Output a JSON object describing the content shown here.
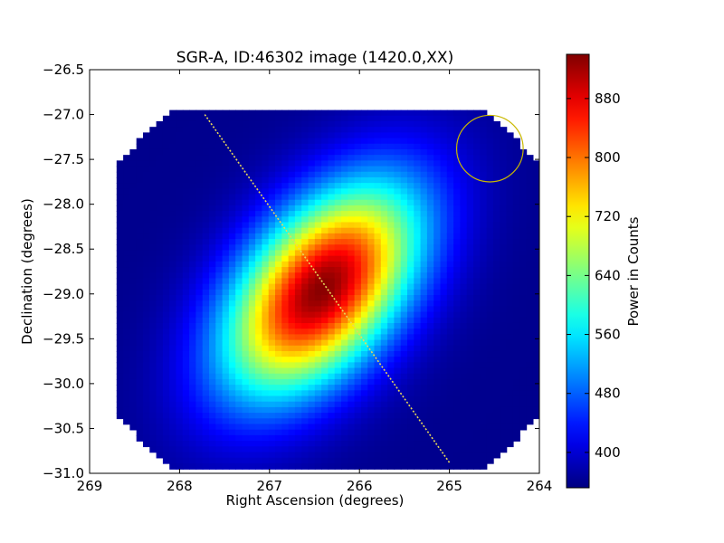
{
  "chart_data": {
    "type": "heatmap",
    "title": "SGR-A, ID:46302 image (1420.0,XX)",
    "xlabel": "Right Ascension (degrees)",
    "ylabel": "Declination (degrees)",
    "xlim": [
      269,
      264
    ],
    "ylim": [
      -31.0,
      -26.5
    ],
    "x_ticks": [
      269,
      268,
      267,
      266,
      265,
      264
    ],
    "x_tick_labels": [
      "269",
      "268",
      "267",
      "266",
      "265",
      "264"
    ],
    "y_ticks": [
      -26.5,
      -27.0,
      -27.5,
      -28.0,
      -28.5,
      -29.0,
      -29.5,
      -30.0,
      -30.5,
      -31.0
    ],
    "y_tick_labels": [
      "−26.5",
      "−27.0",
      "−27.5",
      "−28.0",
      "−28.5",
      "−29.0",
      "−29.5",
      "−30.0",
      "−30.5",
      "−31.0"
    ],
    "colormap": "jet",
    "colorbar": {
      "label": "Power in Counts",
      "vmin": 352,
      "vmax": 940,
      "ticks": [
        400,
        480,
        560,
        640,
        720,
        800,
        880
      ],
      "tick_labels": [
        "400",
        "480",
        "560",
        "640",
        "720",
        "800",
        "880"
      ]
    },
    "image_extent": {
      "ra": [
        268.7,
        264.0
      ],
      "dec": [
        -30.95,
        -26.95
      ],
      "corner_cut_deg": 0.6
    },
    "source": {
      "ra_center": 266.42,
      "dec_center": -28.95,
      "peak": 935,
      "background": 360,
      "major_sigma_deg": 0.95,
      "minor_sigma_deg": 0.55,
      "tilt_deg": 50
    },
    "track_line": {
      "color": "#e8d85a",
      "points": [
        [
          267.72,
          -27.0
        ],
        [
          265.0,
          -30.88
        ]
      ]
    },
    "beam_circle": {
      "color": "#c9b800",
      "ra": 264.55,
      "dec": -27.38,
      "radius_deg": 0.37
    }
  }
}
